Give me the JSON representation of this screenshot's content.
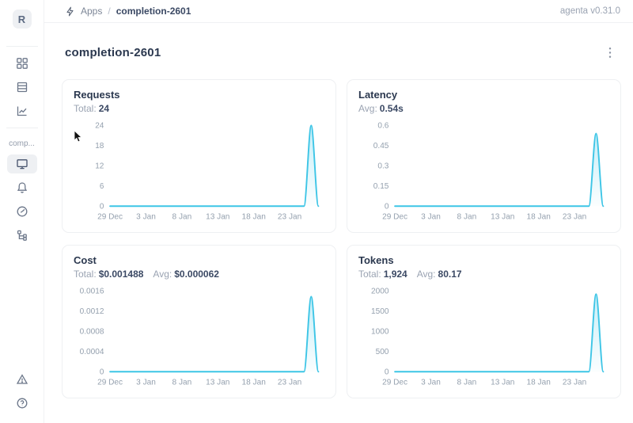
{
  "header": {
    "breadcrumb": {
      "root": "Apps",
      "separator": "/",
      "current": "completion-2601"
    },
    "version": "agenta v0.31.0"
  },
  "sidebar": {
    "logo_letter": "R",
    "workspace_label": "comp...",
    "nav_top": [
      {
        "id": "apps",
        "icon": "grid-icon"
      },
      {
        "id": "testsets",
        "icon": "table-icon"
      },
      {
        "id": "observability",
        "icon": "line-chart-icon"
      }
    ],
    "nav_app": [
      {
        "id": "playground",
        "icon": "monitor-icon",
        "selected": true
      },
      {
        "id": "evaluations",
        "icon": "bell-icon",
        "selected": false
      },
      {
        "id": "dashboard",
        "icon": "gauge-icon",
        "selected": false
      },
      {
        "id": "traces",
        "icon": "tree-icon",
        "selected": false
      }
    ],
    "nav_bottom": [
      {
        "id": "alerts",
        "icon": "alert-triangle-icon"
      },
      {
        "id": "help",
        "icon": "help-icon"
      }
    ]
  },
  "page": {
    "title": "completion-2601"
  },
  "chart_data": [
    {
      "type": "line",
      "title": "Requests",
      "stats": [
        {
          "label": "Total:",
          "value": "24"
        }
      ],
      "x_range": [
        "29 Dec",
        "27 Jan"
      ],
      "x_interval": "daily",
      "x_tick_labels": [
        "29 Dec",
        "3 Jan",
        "8 Jan",
        "13 Jan",
        "18 Jan",
        "23 Jan"
      ],
      "x_tick_indices": [
        0,
        5,
        10,
        15,
        20,
        25
      ],
      "y_ticks": [
        "0",
        "6",
        "12",
        "18",
        "24"
      ],
      "y_max": 24,
      "values": [
        0,
        0,
        0,
        0,
        0,
        0,
        0,
        0,
        0,
        0,
        0,
        0,
        0,
        0,
        0,
        0,
        0,
        0,
        0,
        0,
        0,
        0,
        0,
        0,
        0,
        0,
        0,
        0,
        24,
        0
      ],
      "line_color": "#3dc5e6",
      "grid": false,
      "legend": "none"
    },
    {
      "type": "line",
      "title": "Latency",
      "stats": [
        {
          "label": "Avg:",
          "value": "0.54s"
        }
      ],
      "x_range": [
        "29 Dec",
        "27 Jan"
      ],
      "x_interval": "daily",
      "x_tick_labels": [
        "29 Dec",
        "3 Jan",
        "8 Jan",
        "13 Jan",
        "18 Jan",
        "23 Jan"
      ],
      "x_tick_indices": [
        0,
        5,
        10,
        15,
        20,
        25
      ],
      "y_ticks": [
        "0",
        "0.15",
        "0.3",
        "0.45",
        "0.6"
      ],
      "y_max": 0.6,
      "values": [
        0,
        0,
        0,
        0,
        0,
        0,
        0,
        0,
        0,
        0,
        0,
        0,
        0,
        0,
        0,
        0,
        0,
        0,
        0,
        0,
        0,
        0,
        0,
        0,
        0,
        0,
        0,
        0,
        0.54,
        0
      ],
      "line_color": "#3dc5e6",
      "grid": false,
      "legend": "none"
    },
    {
      "type": "line",
      "title": "Cost",
      "stats": [
        {
          "label": "Total:",
          "value": "$0.001488"
        },
        {
          "label": "Avg:",
          "value": "$0.000062"
        }
      ],
      "x_range": [
        "29 Dec",
        "27 Jan"
      ],
      "x_interval": "daily",
      "x_tick_labels": [
        "29 Dec",
        "3 Jan",
        "8 Jan",
        "13 Jan",
        "18 Jan",
        "23 Jan"
      ],
      "x_tick_indices": [
        0,
        5,
        10,
        15,
        20,
        25
      ],
      "y_ticks": [
        "0",
        "0.0004",
        "0.0008",
        "0.0012",
        "0.0016"
      ],
      "y_max": 0.0016,
      "values": [
        0,
        0,
        0,
        0,
        0,
        0,
        0,
        0,
        0,
        0,
        0,
        0,
        0,
        0,
        0,
        0,
        0,
        0,
        0,
        0,
        0,
        0,
        0,
        0,
        0,
        0,
        0,
        0,
        0.001488,
        0
      ],
      "line_color": "#3dc5e6",
      "grid": false,
      "legend": "none"
    },
    {
      "type": "line",
      "title": "Tokens",
      "stats": [
        {
          "label": "Total:",
          "value": "1,924"
        },
        {
          "label": "Avg:",
          "value": "80.17"
        }
      ],
      "x_range": [
        "29 Dec",
        "27 Jan"
      ],
      "x_interval": "daily",
      "x_tick_labels": [
        "29 Dec",
        "3 Jan",
        "8 Jan",
        "13 Jan",
        "18 Jan",
        "23 Jan"
      ],
      "x_tick_indices": [
        0,
        5,
        10,
        15,
        20,
        25
      ],
      "y_ticks": [
        "0",
        "500",
        "1000",
        "1500",
        "2000"
      ],
      "y_max": 2000,
      "values": [
        0,
        0,
        0,
        0,
        0,
        0,
        0,
        0,
        0,
        0,
        0,
        0,
        0,
        0,
        0,
        0,
        0,
        0,
        0,
        0,
        0,
        0,
        0,
        0,
        0,
        0,
        0,
        0,
        1924,
        0
      ],
      "line_color": "#3dc5e6",
      "grid": false,
      "legend": "none"
    }
  ]
}
